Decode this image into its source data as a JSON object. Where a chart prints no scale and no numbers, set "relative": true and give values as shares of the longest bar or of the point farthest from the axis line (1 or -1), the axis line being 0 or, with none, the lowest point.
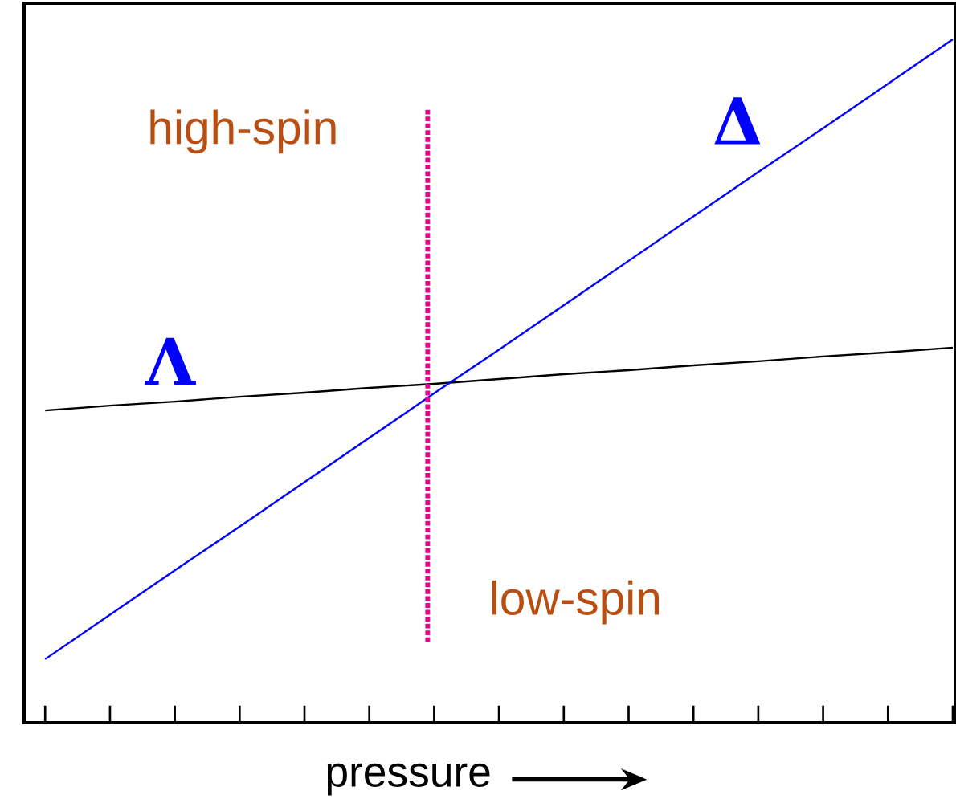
{
  "chart_data": {
    "type": "line",
    "relative": true,
    "xlabel": "pressure",
    "categories": [
      null,
      null,
      null,
      null,
      null,
      null,
      null,
      null,
      null,
      null,
      null,
      null,
      null,
      null,
      null
    ],
    "series": [
      {
        "name": "Λ",
        "color": "#000000",
        "values": [
          0.457,
          0.464,
          0.47,
          0.477,
          0.483,
          0.49,
          0.496,
          0.503,
          0.51,
          0.516,
          0.523,
          0.529,
          0.536,
          0.542,
          0.549
        ]
      },
      {
        "name": "Δ",
        "color": "#0000ff",
        "values": [
          0.093,
          0.158,
          0.223,
          0.287,
          0.352,
          0.417,
          0.482,
          0.546,
          0.611,
          0.676,
          0.741,
          0.806,
          0.87,
          0.935,
          1.0
        ]
      }
    ],
    "annotations": [
      "high-spin",
      "low-spin"
    ],
    "grid": false,
    "legend": false,
    "marker": "none"
  }
}
